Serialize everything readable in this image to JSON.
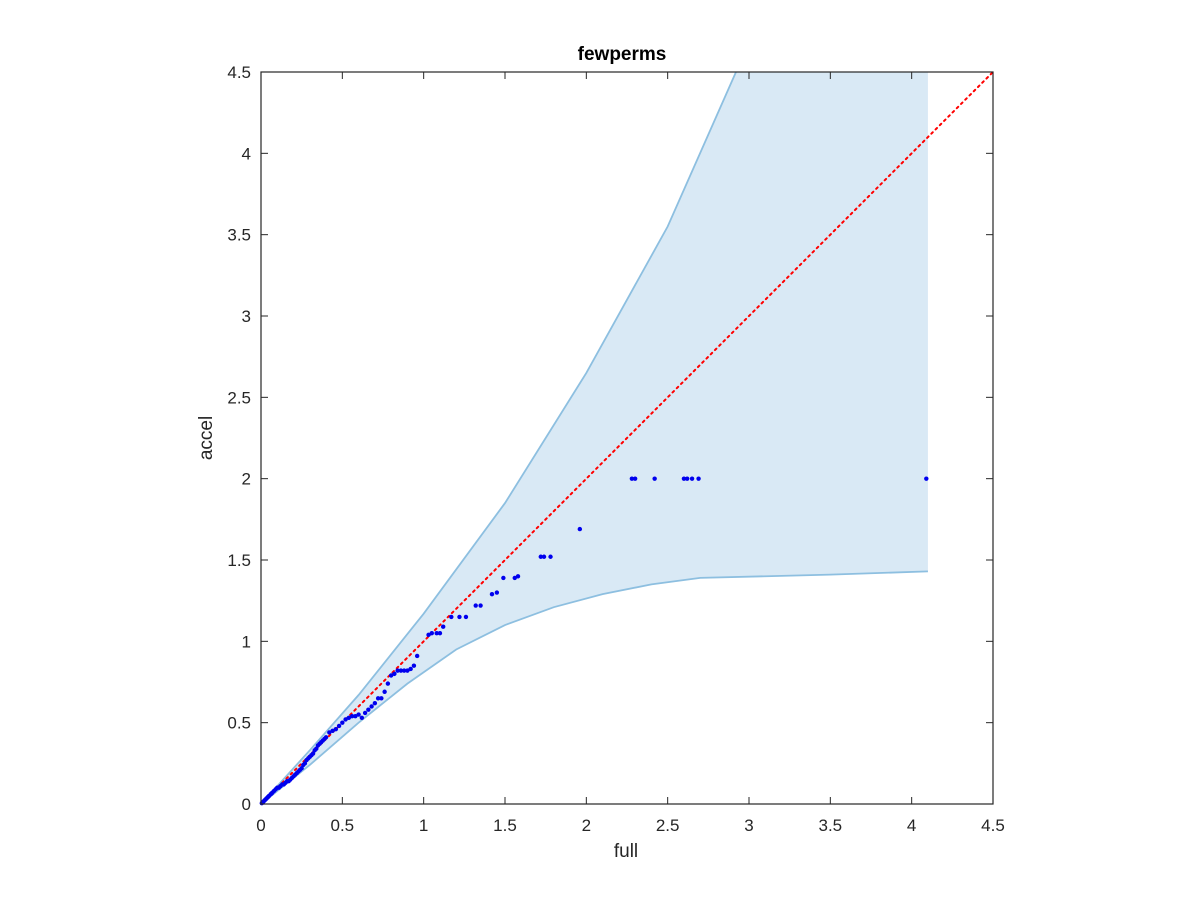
{
  "chart_data": {
    "type": "scatter",
    "title": "fewperms",
    "xlabel": "full",
    "ylabel": "accel",
    "xlim": [
      0,
      4.5
    ],
    "ylim": [
      0,
      4.5
    ],
    "xticks": [
      0,
      0.5,
      1,
      1.5,
      2,
      2.5,
      3,
      3.5,
      4,
      4.5
    ],
    "yticks": [
      0,
      0.5,
      1,
      1.5,
      2,
      2.5,
      3,
      3.5,
      4,
      4.5
    ],
    "xtick_labels": [
      "0",
      "0.5",
      "1",
      "1.5",
      "2",
      "2.5",
      "3",
      "3.5",
      "4",
      "4.5"
    ],
    "ytick_labels": [
      "0",
      "0.5",
      "1",
      "1.5",
      "2",
      "2.5",
      "3",
      "3.5",
      "4",
      "4.5"
    ],
    "grid": false,
    "colors": {
      "points": "#0000ee",
      "reference": "#ff0000",
      "band_fill": "#d9e9f5",
      "band_edge": "#8dbfe0",
      "axes": "#262626"
    },
    "band": {
      "upper": [
        [
          0,
          0
        ],
        [
          0.3,
          0.33
        ],
        [
          0.6,
          0.67
        ],
        [
          1.0,
          1.17
        ],
        [
          1.5,
          1.85
        ],
        [
          2.0,
          2.65
        ],
        [
          2.5,
          3.55
        ],
        [
          2.92,
          4.5
        ]
      ],
      "upper_top_x_end": 4.1,
      "lower": [
        [
          0,
          0
        ],
        [
          0.3,
          0.24
        ],
        [
          0.6,
          0.5
        ],
        [
          0.9,
          0.74
        ],
        [
          1.2,
          0.95
        ],
        [
          1.5,
          1.1
        ],
        [
          1.8,
          1.21
        ],
        [
          2.1,
          1.29
        ],
        [
          2.4,
          1.35
        ],
        [
          2.7,
          1.39
        ],
        [
          3.5,
          1.41
        ],
        [
          4.1,
          1.43
        ]
      ]
    },
    "reference_line": {
      "x": [
        0,
        4.5
      ],
      "y": [
        0,
        4.5
      ]
    },
    "points": {
      "x": [
        0.005,
        0.01,
        0.015,
        0.02,
        0.025,
        0.03,
        0.035,
        0.04,
        0.045,
        0.05,
        0.06,
        0.065,
        0.07,
        0.08,
        0.09,
        0.1,
        0.11,
        0.12,
        0.13,
        0.14,
        0.15,
        0.16,
        0.17,
        0.18,
        0.19,
        0.2,
        0.21,
        0.22,
        0.23,
        0.24,
        0.25,
        0.26,
        0.27,
        0.28,
        0.29,
        0.3,
        0.31,
        0.32,
        0.33,
        0.34,
        0.35,
        0.36,
        0.37,
        0.38,
        0.39,
        0.4,
        0.42,
        0.44,
        0.46,
        0.48,
        0.5,
        0.52,
        0.54,
        0.56,
        0.58,
        0.6,
        0.62,
        0.64,
        0.66,
        0.68,
        0.7,
        0.72,
        0.74,
        0.76,
        0.78,
        0.8,
        0.82,
        0.84,
        0.86,
        0.88,
        0.9,
        0.92,
        0.94,
        0.96,
        1.03,
        1.05,
        1.08,
        1.1,
        1.12,
        1.17,
        1.22,
        1.26,
        1.32,
        1.35,
        1.42,
        1.45,
        1.49,
        1.56,
        1.58,
        1.72,
        1.74,
        1.78,
        1.96,
        2.28,
        2.3,
        2.42,
        2.6,
        2.62,
        2.65,
        2.69,
        4.09
      ],
      "y": [
        0.005,
        0.01,
        0.015,
        0.02,
        0.025,
        0.03,
        0.035,
        0.04,
        0.045,
        0.05,
        0.06,
        0.065,
        0.07,
        0.08,
        0.09,
        0.1,
        0.1,
        0.11,
        0.12,
        0.12,
        0.13,
        0.14,
        0.14,
        0.15,
        0.16,
        0.17,
        0.18,
        0.19,
        0.2,
        0.21,
        0.22,
        0.24,
        0.25,
        0.27,
        0.28,
        0.29,
        0.3,
        0.31,
        0.33,
        0.34,
        0.36,
        0.37,
        0.38,
        0.39,
        0.4,
        0.41,
        0.44,
        0.45,
        0.46,
        0.48,
        0.5,
        0.52,
        0.53,
        0.54,
        0.54,
        0.55,
        0.53,
        0.56,
        0.58,
        0.6,
        0.62,
        0.65,
        0.65,
        0.69,
        0.74,
        0.79,
        0.8,
        0.82,
        0.82,
        0.82,
        0.82,
        0.83,
        0.85,
        0.91,
        1.04,
        1.05,
        1.05,
        1.05,
        1.09,
        1.15,
        1.15,
        1.15,
        1.22,
        1.22,
        1.29,
        1.3,
        1.39,
        1.39,
        1.4,
        1.52,
        1.52,
        1.52,
        1.69,
        2.0,
        2.0,
        2.0,
        2.0,
        2.0,
        2.0,
        2.0,
        2.0
      ]
    }
  }
}
